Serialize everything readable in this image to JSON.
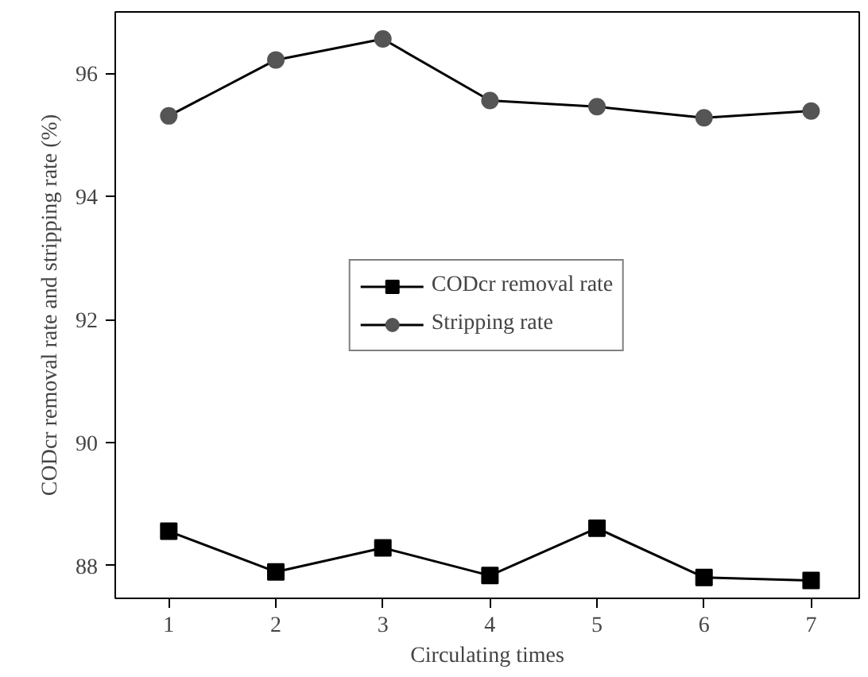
{
  "chart_data": {
    "type": "line",
    "xlabel": "Circulating times",
    "ylabel": "CODcr removal rate and stripping rate (%)",
    "x": [
      1,
      2,
      3,
      4,
      5,
      6,
      7
    ],
    "series": [
      {
        "name": "CODcr removal rate",
        "color": "#000000",
        "marker": "square",
        "values": [
          88.56,
          87.9,
          88.29,
          87.84,
          88.61,
          87.81,
          87.76
        ]
      },
      {
        "name": "Stripping rate",
        "color": "#555555",
        "marker": "circle",
        "values": [
          95.31,
          96.22,
          96.56,
          95.56,
          95.46,
          95.28,
          95.39
        ]
      }
    ],
    "xlim": [
      0.5,
      7.45
    ],
    "ylim": [
      87.47,
      97.0
    ],
    "xticks": [
      1,
      2,
      3,
      4,
      5,
      6,
      7
    ],
    "yticks": [
      88,
      90,
      92,
      94,
      96
    ],
    "grid": false,
    "legend": "center",
    "line_style": "solid"
  }
}
